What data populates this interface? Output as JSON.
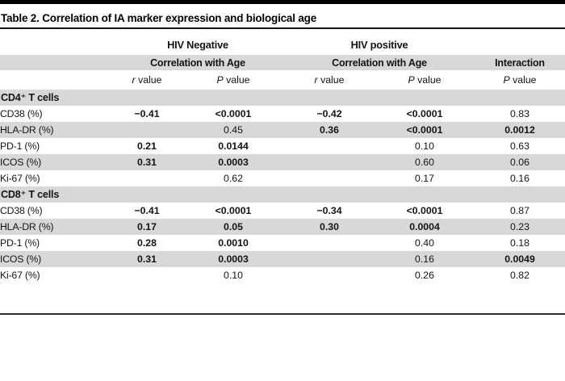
{
  "title": "Table 2. Correlation of IA marker expression and biological age",
  "colors": {
    "band": "#d8d8d8",
    "rule": "#2e2e2e",
    "topbar": "#000000"
  },
  "table": {
    "header": {
      "group_negative": "HIV Negative",
      "group_positive": "HIV positive",
      "corr_negative": "Correlation with Age",
      "corr_positive": "Correlation with Age",
      "interaction": "Interaction",
      "stats": [
        {
          "sym": "r",
          "word": "value"
        },
        {
          "sym": "P",
          "word": "value"
        },
        {
          "sym": "r",
          "word": "value"
        },
        {
          "sym": "P",
          "word": "value"
        },
        {
          "sym": "P",
          "word": "value"
        }
      ]
    },
    "sections": [
      {
        "label": "CD4⁺ T cells",
        "rows": [
          {
            "label": "CD38 (%)",
            "cells": [
              {
                "v": "−0.41",
                "b": true
              },
              {
                "v": "<0.0001",
                "b": true
              },
              {
                "v": "−0.42",
                "b": true
              },
              {
                "v": "<0.0001",
                "b": true
              },
              {
                "v": "0.83",
                "b": false
              }
            ]
          },
          {
            "label": "HLA-DR (%)",
            "cells": [
              {
                "v": "",
                "b": false
              },
              {
                "v": "0.45",
                "b": false
              },
              {
                "v": "0.36",
                "b": true
              },
              {
                "v": "<0.0001",
                "b": true
              },
              {
                "v": "0.0012",
                "b": true
              }
            ]
          },
          {
            "label": "PD-1 (%)",
            "cells": [
              {
                "v": "0.21",
                "b": true
              },
              {
                "v": "0.0144",
                "b": true
              },
              {
                "v": "",
                "b": false
              },
              {
                "v": "0.10",
                "b": false
              },
              {
                "v": "0.63",
                "b": false
              }
            ]
          },
          {
            "label": "ICOS (%)",
            "cells": [
              {
                "v": "0.31",
                "b": true
              },
              {
                "v": "0.0003",
                "b": true
              },
              {
                "v": "",
                "b": false
              },
              {
                "v": "0.60",
                "b": false
              },
              {
                "v": "0.06",
                "b": false
              }
            ]
          },
          {
            "label": "Ki-67 (%)",
            "cells": [
              {
                "v": "",
                "b": false
              },
              {
                "v": "0.62",
                "b": false
              },
              {
                "v": "",
                "b": false
              },
              {
                "v": "0.17",
                "b": false
              },
              {
                "v": "0.16",
                "b": false
              }
            ]
          }
        ]
      },
      {
        "label": "CD8⁺ T cells",
        "rows": [
          {
            "label": "CD38 (%)",
            "cells": [
              {
                "v": "−0.41",
                "b": true
              },
              {
                "v": "<0.0001",
                "b": true
              },
              {
                "v": "−0.34",
                "b": true
              },
              {
                "v": "<0.0001",
                "b": true
              },
              {
                "v": "0.87",
                "b": false
              }
            ]
          },
          {
            "label": "HLA-DR (%)",
            "cells": [
              {
                "v": "0.17",
                "b": true
              },
              {
                "v": "0.05",
                "b": true
              },
              {
                "v": "0.30",
                "b": true
              },
              {
                "v": "0.0004",
                "b": true
              },
              {
                "v": "0.23",
                "b": false
              }
            ]
          },
          {
            "label": "PD-1 (%)",
            "cells": [
              {
                "v": "0.28",
                "b": true
              },
              {
                "v": "0.0010",
                "b": true
              },
              {
                "v": "",
                "b": false
              },
              {
                "v": "0.40",
                "b": false
              },
              {
                "v": "0.18",
                "b": false
              }
            ]
          },
          {
            "label": "ICOS (%)",
            "cells": [
              {
                "v": "0.31",
                "b": true
              },
              {
                "v": "0.0003",
                "b": true
              },
              {
                "v": "",
                "b": false
              },
              {
                "v": "0.16",
                "b": false
              },
              {
                "v": "0.0049",
                "b": true
              }
            ]
          },
          {
            "label": "Ki-67 (%)",
            "cells": [
              {
                "v": "",
                "b": false
              },
              {
                "v": "0.10",
                "b": false
              },
              {
                "v": "",
                "b": false
              },
              {
                "v": "0.26",
                "b": false
              },
              {
                "v": "0.82",
                "b": false
              }
            ]
          }
        ]
      }
    ]
  }
}
